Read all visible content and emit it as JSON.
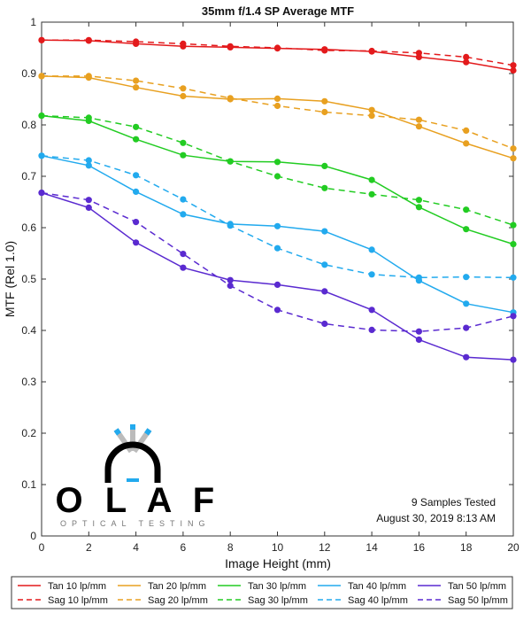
{
  "chart_data": {
    "type": "line",
    "title": "35mm f/1.4 SP Average MTF",
    "xlabel": "Image Height (mm)",
    "ylabel": "MTF (Rel 1.0)",
    "xlim": [
      0,
      20
    ],
    "ylim": [
      0,
      1
    ],
    "xticks": [
      "0",
      "2",
      "4",
      "6",
      "8",
      "10",
      "12",
      "14",
      "16",
      "18",
      "20"
    ],
    "yticks": [
      "0",
      "0.1",
      "0.2",
      "0.3",
      "0.4",
      "0.5",
      "0.6",
      "0.7",
      "0.8",
      "0.9",
      "1"
    ],
    "x": [
      0,
      2,
      4,
      6,
      8,
      10,
      12,
      14,
      16,
      18,
      20
    ],
    "grid": false,
    "legend_position": "bottom",
    "series": [
      {
        "name": "Tan 10 lp/mm",
        "color": "#e31a1c",
        "dash": "solid",
        "values": [
          0.965,
          0.964,
          0.958,
          0.953,
          0.951,
          0.949,
          0.947,
          0.943,
          0.932,
          0.922,
          0.906
        ]
      },
      {
        "name": "Sag 10 lp/mm",
        "color": "#e31a1c",
        "dash": "dashed",
        "values": [
          0.965,
          0.965,
          0.962,
          0.958,
          0.953,
          0.95,
          0.945,
          0.944,
          0.94,
          0.932,
          0.916
        ]
      },
      {
        "name": "Tan 20 lp/mm",
        "color": "#e8a020",
        "dash": "solid",
        "values": [
          0.895,
          0.892,
          0.873,
          0.856,
          0.85,
          0.851,
          0.846,
          0.829,
          0.797,
          0.764,
          0.735
        ]
      },
      {
        "name": "Sag 20 lp/mm",
        "color": "#e8a020",
        "dash": "dashed",
        "values": [
          0.895,
          0.895,
          0.886,
          0.871,
          0.852,
          0.837,
          0.825,
          0.818,
          0.81,
          0.789,
          0.754
        ]
      },
      {
        "name": "Tan 30 lp/mm",
        "color": "#22cc22",
        "dash": "solid",
        "values": [
          0.818,
          0.808,
          0.772,
          0.741,
          0.729,
          0.728,
          0.72,
          0.693,
          0.64,
          0.597,
          0.568
        ]
      },
      {
        "name": "Sag 30 lp/mm",
        "color": "#22cc22",
        "dash": "dashed",
        "values": [
          0.818,
          0.814,
          0.796,
          0.765,
          0.729,
          0.7,
          0.677,
          0.665,
          0.654,
          0.635,
          0.605
        ]
      },
      {
        "name": "Tan 40 lp/mm",
        "color": "#22aaee",
        "dash": "solid",
        "values": [
          0.74,
          0.721,
          0.67,
          0.626,
          0.607,
          0.603,
          0.593,
          0.557,
          0.497,
          0.452,
          0.435
        ]
      },
      {
        "name": "Sag 40 lp/mm",
        "color": "#22aaee",
        "dash": "dashed",
        "values": [
          0.74,
          0.731,
          0.702,
          0.655,
          0.604,
          0.56,
          0.528,
          0.509,
          0.503,
          0.504,
          0.503
        ]
      },
      {
        "name": "Tan 50 lp/mm",
        "color": "#5a2ad0",
        "dash": "solid",
        "values": [
          0.668,
          0.639,
          0.571,
          0.522,
          0.498,
          0.489,
          0.476,
          0.44,
          0.382,
          0.348,
          0.343
        ]
      },
      {
        "name": "Sag 50 lp/mm",
        "color": "#5a2ad0",
        "dash": "dashed",
        "values": [
          0.668,
          0.654,
          0.611,
          0.549,
          0.487,
          0.44,
          0.413,
          0.401,
          0.398,
          0.405,
          0.428
        ]
      }
    ],
    "annotations": [
      "9 Samples Tested",
      "August 30, 2019  8:13 AM"
    ]
  },
  "logo": {
    "letters": [
      "O",
      "L",
      "A",
      "F"
    ],
    "subtitle": "OPTICAL TESTING"
  }
}
